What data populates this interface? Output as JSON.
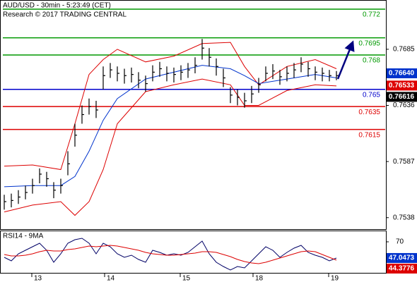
{
  "chart_data": [
    {
      "type": "ohlc",
      "title": "AUD/USD - 30min - 5:23:49 (CET)",
      "subtitle": "Research © 2017 TRADING CENTRAL",
      "color": "#000000",
      "high": [
        0.7558,
        0.7559,
        0.7562,
        0.7566,
        0.7572,
        0.7581,
        0.7578,
        0.7569,
        0.7572,
        0.7596,
        0.762,
        0.7636,
        0.7642,
        0.764,
        0.767,
        0.7673,
        0.767,
        0.7668,
        0.7669,
        0.7665,
        0.7662,
        0.7671,
        0.7674,
        0.767,
        0.7669,
        0.7671,
        0.7673,
        0.7678,
        0.7694,
        0.7686,
        0.7677,
        0.7668,
        0.7652,
        0.765,
        0.7647,
        0.7653,
        0.766,
        0.767,
        0.7672,
        0.7667,
        0.767,
        0.7673,
        0.7678,
        0.7674,
        0.767,
        0.7669,
        0.7667,
        0.7666
      ],
      "low": [
        0.7545,
        0.7547,
        0.755,
        0.7554,
        0.7559,
        0.7568,
        0.7565,
        0.7555,
        0.7559,
        0.7575,
        0.76,
        0.762,
        0.7628,
        0.7625,
        0.765,
        0.766,
        0.7657,
        0.7655,
        0.7656,
        0.7651,
        0.7648,
        0.7657,
        0.7661,
        0.7657,
        0.7656,
        0.7658,
        0.766,
        0.7664,
        0.7676,
        0.767,
        0.7662,
        0.7652,
        0.7638,
        0.7636,
        0.7634,
        0.7638,
        0.7647,
        0.7657,
        0.7659,
        0.7654,
        0.7657,
        0.766,
        0.7665,
        0.7661,
        0.7658,
        0.7657,
        0.7657,
        0.7658
      ],
      "close": [
        0.7552,
        0.7553,
        0.7556,
        0.756,
        0.7566,
        0.7576,
        0.7572,
        0.7562,
        0.7566,
        0.7585,
        0.761,
        0.7628,
        0.7635,
        0.7632,
        0.7662,
        0.7667,
        0.7664,
        0.7662,
        0.7663,
        0.7658,
        0.7655,
        0.7665,
        0.7668,
        0.7664,
        0.7663,
        0.7665,
        0.7667,
        0.7671,
        0.7686,
        0.7678,
        0.767,
        0.766,
        0.7645,
        0.7643,
        0.764,
        0.7646,
        0.7654,
        0.7664,
        0.7666,
        0.7661,
        0.7664,
        0.7667,
        0.7672,
        0.7668,
        0.7665,
        0.7664,
        0.7662,
        0.7662
      ],
      "bands": [
        {
          "color": "#dd0000",
          "x": [
            0,
            4,
            8,
            10,
            12,
            14,
            16,
            20,
            24,
            28,
            32,
            34,
            36,
            40,
            44,
            47
          ],
          "values": [
            0.7583,
            0.7584,
            0.758,
            0.762,
            0.7663,
            0.7676,
            0.7685,
            0.7674,
            0.7679,
            0.769,
            0.7691,
            0.767,
            0.7654,
            0.767,
            0.7676,
            0.7668
          ]
        },
        {
          "color": "#0033cc",
          "x": [
            0,
            4,
            8,
            10,
            12,
            14,
            16,
            20,
            24,
            28,
            32,
            34,
            36,
            40,
            44,
            47
          ],
          "values": [
            0.7565,
            0.7566,
            0.7566,
            0.7574,
            0.7596,
            0.7623,
            0.7642,
            0.7659,
            0.7665,
            0.7671,
            0.7668,
            0.7662,
            0.7655,
            0.7659,
            0.7663,
            0.766
          ]
        },
        {
          "color": "#dd0000",
          "x": [
            0,
            4,
            8,
            10,
            12,
            14,
            16,
            20,
            24,
            28,
            32,
            34,
            36,
            40,
            44,
            47
          ],
          "values": [
            0.7543,
            0.7549,
            0.7552,
            0.754,
            0.7552,
            0.758,
            0.762,
            0.7648,
            0.7654,
            0.7659,
            0.7654,
            0.7636,
            0.7636,
            0.7649,
            0.7654,
            0.7653
          ]
        }
      ],
      "levels": [
        {
          "value": 0.772,
          "color": "#009900"
        },
        {
          "value": 0.7695,
          "color": "#009900"
        },
        {
          "value": 0.768,
          "color": "#009900"
        },
        {
          "value": 0.765,
          "color": "#0000cc"
        },
        {
          "value": 0.7635,
          "color": "#dd0000"
        },
        {
          "value": 0.7615,
          "color": "#dd0000"
        }
      ],
      "price_markers": [
        {
          "value": 0.7664,
          "label": "0.76640",
          "color": "#0033cc"
        },
        {
          "value": 0.76533,
          "color": "#dd0000"
        },
        {
          "value": 0.76616,
          "color": "#000000"
        }
      ],
      "xlim": [
        0,
        54
      ],
      "ylim": [
        0.7528,
        0.7728
      ],
      "yticks": [
        0.7538,
        0.7587,
        0.7636,
        0.7685
      ]
    },
    {
      "type": "line",
      "title": "RSI14 - 9MA",
      "series": [
        {
          "color": "#000066",
          "values": [
            48,
            43,
            53,
            58,
            63,
            68,
            58,
            41,
            53,
            68,
            73,
            75,
            68,
            53,
            68,
            63,
            53,
            48,
            51,
            45,
            41,
            58,
            55,
            51,
            53,
            51,
            55,
            63,
            71,
            53,
            41,
            35,
            30,
            35,
            33,
            43,
            53,
            63,
            58,
            48,
            55,
            61,
            65,
            55,
            51,
            48,
            43,
            47
          ]
        },
        {
          "color": "#dd0000",
          "values": [
            52,
            50,
            50,
            51,
            53,
            56,
            58,
            57,
            57,
            59,
            60,
            62,
            64,
            63,
            64,
            65,
            64,
            62,
            60,
            58,
            55,
            53,
            52,
            51,
            51,
            52,
            53,
            54,
            56,
            56,
            55,
            52,
            49,
            45,
            42,
            40,
            39,
            41,
            44,
            47,
            50,
            53,
            56,
            57,
            56,
            52,
            48,
            44
          ]
        }
      ],
      "value_markers": [
        {
          "value": 47.0473,
          "color": "#0033cc"
        },
        {
          "value": 44.3776,
          "color": "#dd0000"
        }
      ],
      "xlim": [
        0,
        54
      ],
      "xticks": [
        {
          "value": 3.9,
          "label": "13"
        },
        {
          "value": 14.2,
          "label": "14"
        },
        {
          "value": 24.9,
          "label": "15"
        },
        {
          "value": 35.2,
          "label": "18"
        },
        {
          "value": 45.9,
          "label": "19"
        }
      ],
      "ylim": [
        25,
        85
      ],
      "yticks": [
        70
      ]
    }
  ]
}
